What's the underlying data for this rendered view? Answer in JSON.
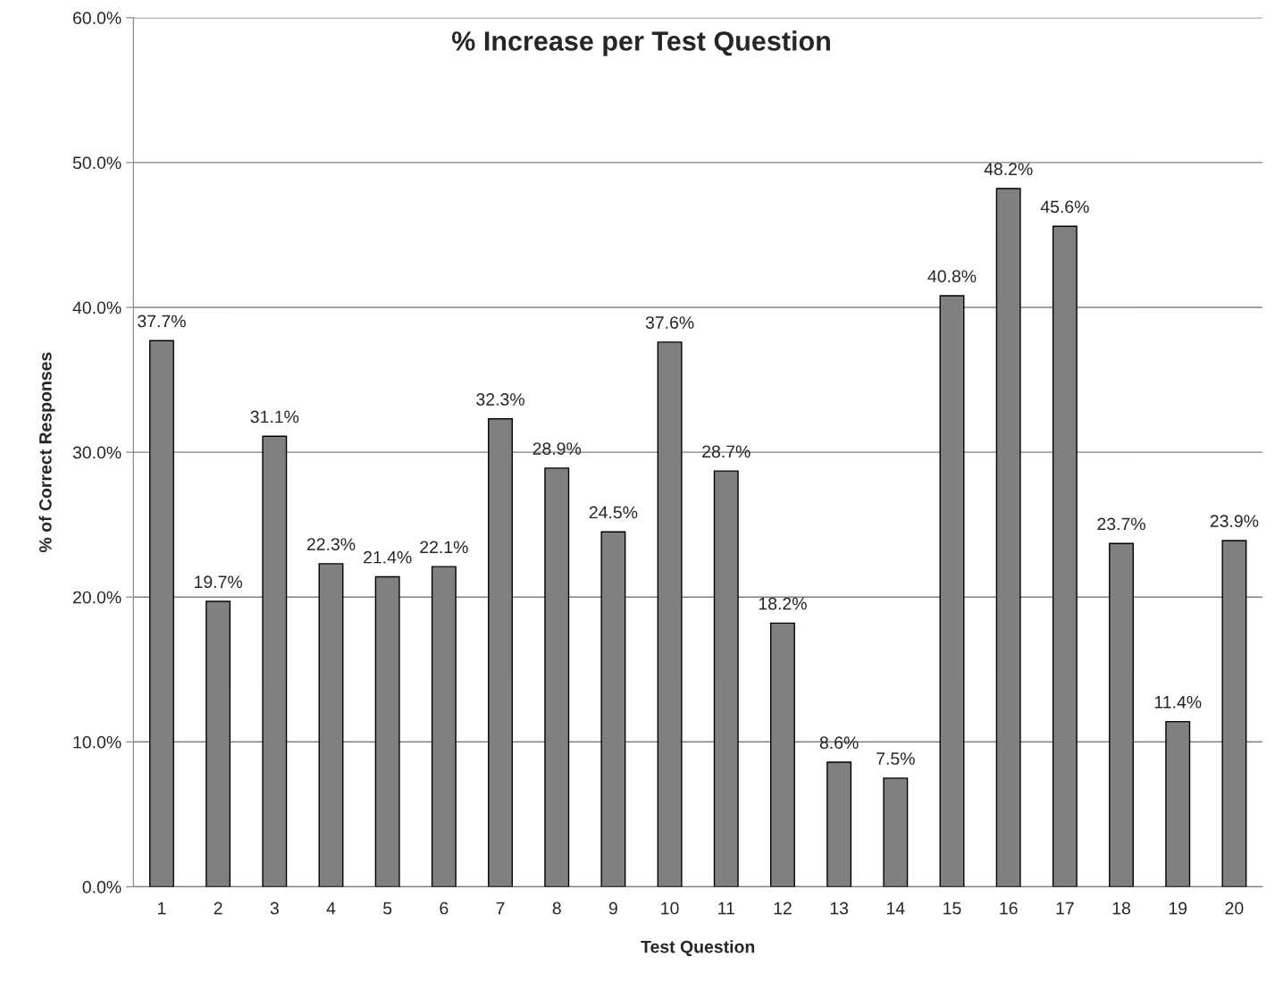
{
  "chart_data": {
    "type": "bar",
    "title": "% Increase per Test Question",
    "xlabel": "Test Question",
    "ylabel": "% of Correct Responses",
    "categories": [
      "1",
      "2",
      "3",
      "4",
      "5",
      "6",
      "7",
      "8",
      "9",
      "10",
      "11",
      "12",
      "13",
      "14",
      "15",
      "16",
      "17",
      "18",
      "19",
      "20"
    ],
    "values": [
      37.7,
      19.7,
      31.1,
      22.3,
      21.4,
      22.1,
      32.3,
      28.9,
      24.5,
      37.6,
      28.7,
      18.2,
      8.6,
      7.5,
      40.8,
      48.2,
      45.6,
      23.7,
      11.4,
      23.9
    ],
    "value_labels": [
      "37.7%",
      "19.7%",
      "31.1%",
      "22.3%",
      "21.4%",
      "22.1%",
      "32.3%",
      "28.9%",
      "24.5%",
      "37.6%",
      "28.7%",
      "18.2%",
      "8.6%",
      "7.5%",
      "40.8%",
      "48.2%",
      "45.6%",
      "23.7%",
      "11.4%",
      "23.9%"
    ],
    "color": "#808080",
    "ylim": [
      0,
      60
    ],
    "yticks": [
      {
        "value": 0,
        "label": "0.0%"
      },
      {
        "value": 10,
        "label": "10.0%"
      },
      {
        "value": 20,
        "label": "20.0%"
      },
      {
        "value": 30,
        "label": "30.0%"
      },
      {
        "value": 40,
        "label": "40.0%"
      },
      {
        "value": 50,
        "label": "50.0%"
      },
      {
        "value": 60,
        "label": "60.0%"
      }
    ],
    "grid": "y",
    "legend": false
  }
}
